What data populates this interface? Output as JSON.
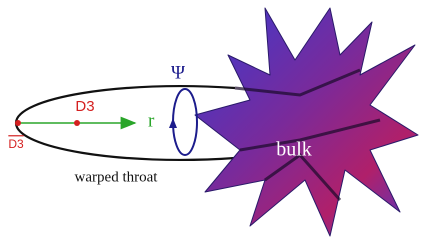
{
  "labels": {
    "psi": "Ψ",
    "d3": "D3",
    "anti_d3": "D3",
    "r": "r",
    "bulk": "bulk",
    "throat": "warped throat"
  }
}
